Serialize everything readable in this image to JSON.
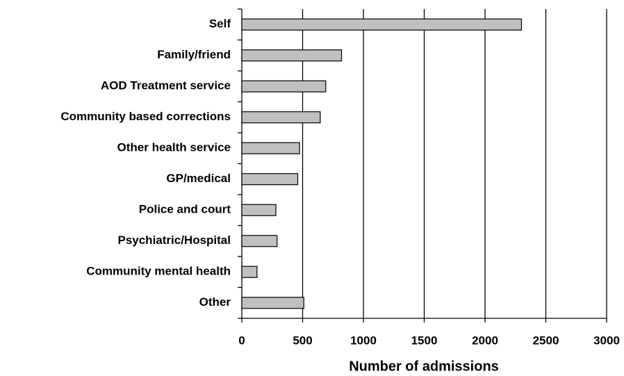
{
  "chart_data": {
    "type": "bar",
    "orientation": "horizontal",
    "x_label": "Number of admissions",
    "categories": [
      "Self",
      "Family/friend",
      "AOD Treatment service",
      "Community based corrections",
      "Other health service",
      "GP/medical",
      "Police and court",
      "Psychiatric/Hospital",
      "Community mental health",
      "Other"
    ],
    "values": [
      2300,
      820,
      690,
      645,
      475,
      460,
      280,
      290,
      125,
      510
    ],
    "color": "#c0c0c0",
    "xlim": [
      0,
      3000
    ],
    "xticks": [
      0,
      500,
      1000,
      1500,
      2000,
      2500,
      3000
    ],
    "grid": true
  }
}
